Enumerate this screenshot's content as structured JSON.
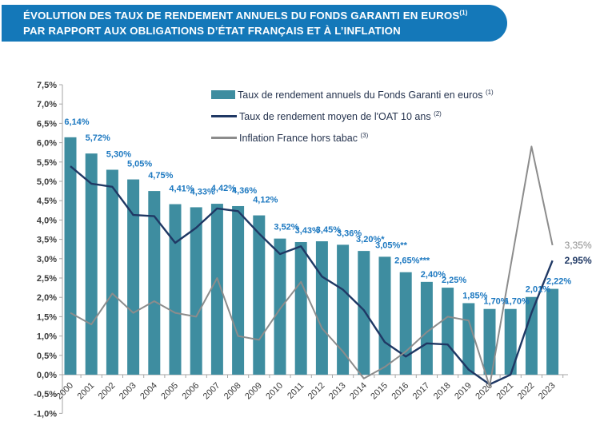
{
  "banner": {
    "line1": "ÉVOLUTION DES TAUX DE RENDEMENT ANNUELS DU FONDS GARANTI EN EUROS",
    "line1_sup": "(1)",
    "line2": "PAR RAPPORT AUX OBLIGATIONS D’ÉTAT FRANÇAIS ET À L’INFLATION",
    "bg_color": "#1478b9",
    "text_color": "#ffffff"
  },
  "legend": {
    "text_color": "#25334e",
    "items": [
      {
        "label": "Taux de rendement annuels du Fonds Garanti en euros",
        "sup": "(1)",
        "swatch": "bar",
        "color": "#3e8da0"
      },
      {
        "label": "Taux de rendement moyen de l'OAT 10 ans",
        "sup": "(2)",
        "swatch": "line",
        "color": "#1f3864"
      },
      {
        "label": "Inflation France hors tabac",
        "sup": "(3)",
        "swatch": "line",
        "color": "#8c8c8c"
      }
    ]
  },
  "chart_data": {
    "type": "bar+line",
    "title": "Évolution des taux de rendement annuels du Fonds Garanti en euros par rapport aux obligations d’État français et à l’inflation",
    "categories": [
      "2000",
      "2001",
      "2002",
      "2003",
      "2004",
      "2005",
      "2006",
      "2007",
      "2008",
      "2009",
      "2010",
      "2011",
      "2012",
      "2013",
      "2014",
      "2015",
      "2016",
      "2017",
      "2018",
      "2019",
      "2020",
      "2021",
      "2022",
      "2023"
    ],
    "series": [
      {
        "name": "Taux de rendement annuels du Fonds Garanti en euros",
        "type": "bar",
        "color": "#3e8da0",
        "values": [
          6.14,
          5.72,
          5.3,
          5.05,
          4.75,
          4.41,
          4.33,
          4.42,
          4.36,
          4.12,
          3.52,
          3.43,
          3.45,
          3.36,
          3.2,
          3.05,
          2.65,
          2.4,
          2.25,
          1.85,
          1.7,
          1.7,
          2.01,
          2.22
        ],
        "point_labels": [
          "6,14%",
          "5,72%",
          "5,30%",
          "5,05%",
          "4,75%",
          "4,41%",
          "4,33%",
          "4,42%",
          "4,36%",
          "4,12%",
          "3,52%",
          "3,43%",
          "3,45%",
          "3,36%",
          "3,20%*",
          "3,05%**",
          "2,65%***",
          "2,40%",
          "2,25%",
          "1,85%",
          "1,70%",
          "1,70%",
          "2,01%",
          "2,22%"
        ]
      },
      {
        "name": "Taux de rendement moyen de l'OAT 10 ans",
        "type": "line",
        "color": "#1f3864",
        "values": [
          5.39,
          4.94,
          4.86,
          4.13,
          4.1,
          3.41,
          3.8,
          4.3,
          4.23,
          3.65,
          3.12,
          3.32,
          2.54,
          2.2,
          1.67,
          0.84,
          0.47,
          0.81,
          0.78,
          0.13,
          -0.25,
          0.0,
          1.6,
          2.95
        ],
        "end_label": "2,95%"
      },
      {
        "name": "Inflation France hors tabac",
        "type": "line",
        "color": "#8c8c8c",
        "values": [
          1.6,
          1.3,
          2.1,
          1.6,
          1.9,
          1.6,
          1.5,
          2.5,
          1.0,
          0.9,
          1.7,
          2.4,
          1.2,
          0.6,
          -0.1,
          0.2,
          0.6,
          1.1,
          1.5,
          1.4,
          -0.3,
          2.8,
          5.9,
          3.35
        ],
        "end_label": "3,35%"
      }
    ],
    "xlabel": "",
    "ylabel": "",
    "ylim": [
      -1.0,
      7.5
    ],
    "ytick_step": 0.5,
    "grid": false,
    "legend_position": "top-center-inside",
    "value_label_color": "#1c78c0",
    "axis_color": "#a6a6a6",
    "tick_text_color": "#3a3a3a"
  }
}
